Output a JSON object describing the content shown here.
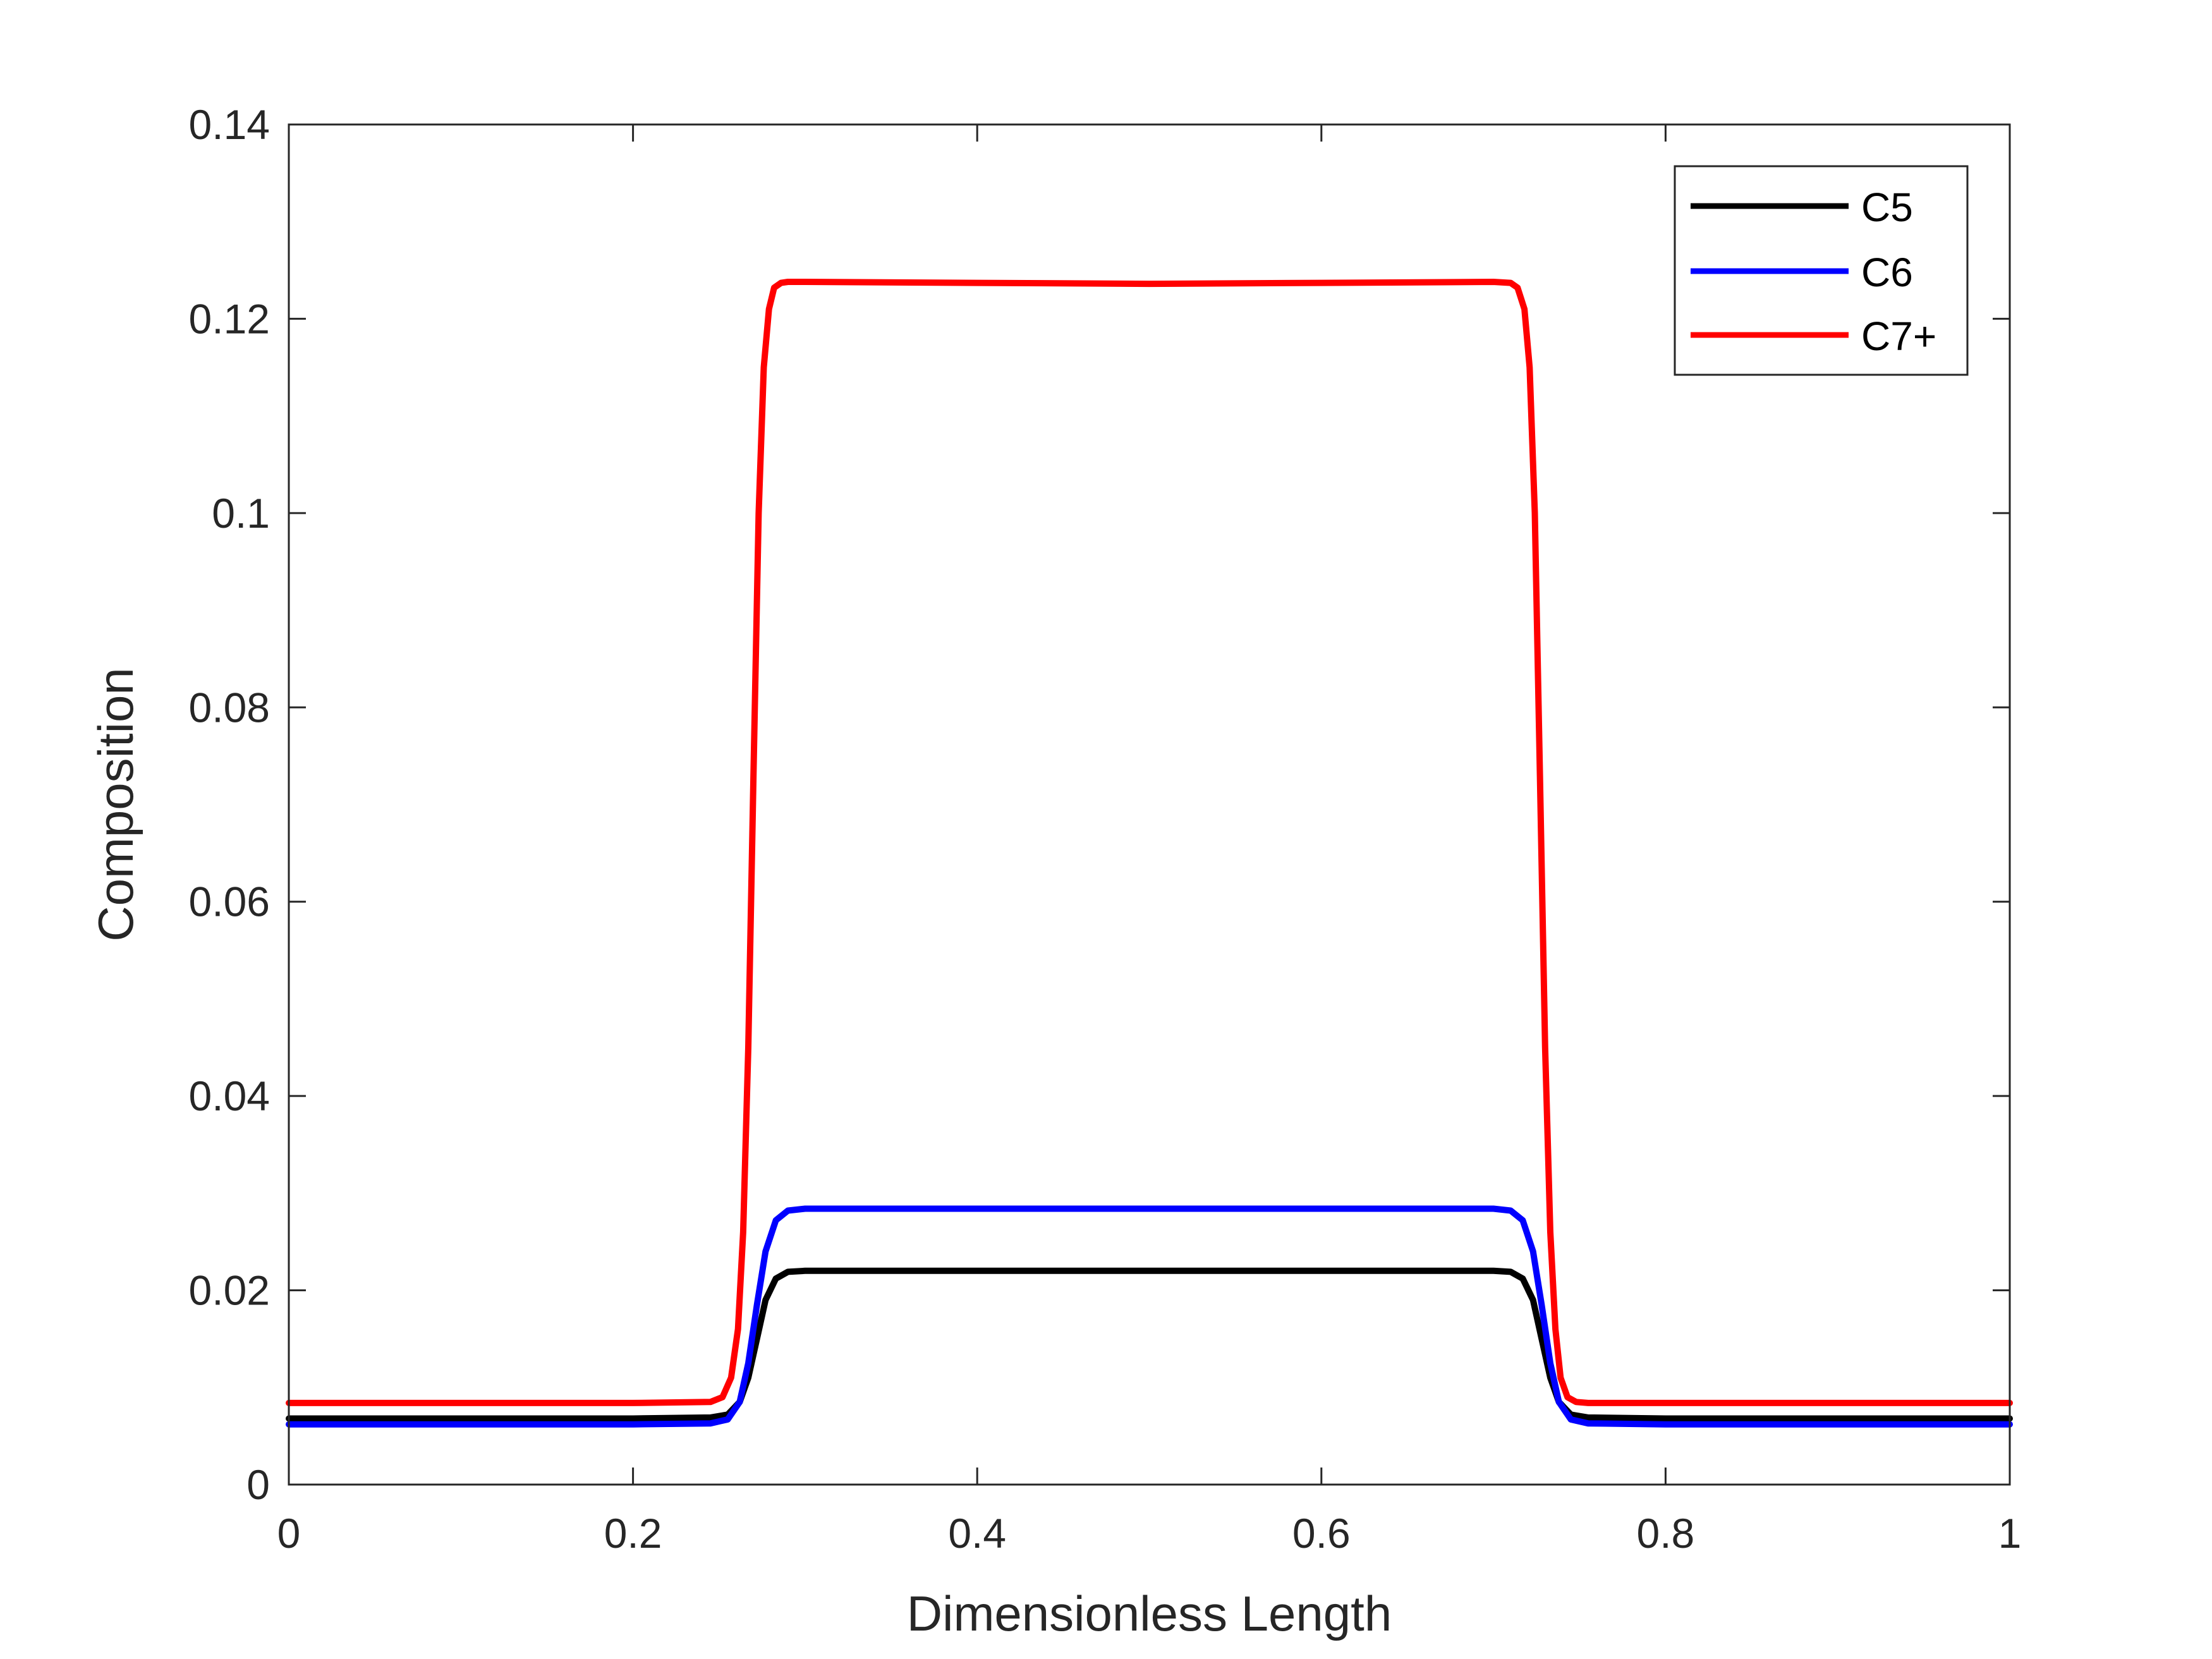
{
  "chart_data": {
    "type": "line",
    "title": "",
    "xlabel": "Dimensionless Length",
    "ylabel": "Composition",
    "xlim": [
      0,
      1
    ],
    "ylim": [
      0,
      0.14
    ],
    "xticks": [
      0,
      0.2,
      0.4,
      0.6,
      0.8,
      1
    ],
    "xtick_labels": [
      "0",
      "0.2",
      "0.4",
      "0.6",
      "0.8",
      "1"
    ],
    "yticks": [
      0,
      0.02,
      0.04,
      0.06,
      0.08,
      0.1,
      0.12,
      0.14
    ],
    "ytick_labels": [
      "0",
      "0.02",
      "0.04",
      "0.06",
      "0.08",
      "0.1",
      "0.12",
      "0.14"
    ],
    "grid": false,
    "legend_position": "top-right",
    "series": [
      {
        "name": "C5",
        "color": "#000000",
        "x": [
          0,
          0.1,
          0.2,
          0.245,
          0.255,
          0.262,
          0.267,
          0.272,
          0.277,
          0.283,
          0.29,
          0.3,
          0.4,
          0.5,
          0.6,
          0.7,
          0.71,
          0.717,
          0.723,
          0.728,
          0.733,
          0.738,
          0.745,
          0.755,
          0.8,
          0.9,
          1
        ],
        "y": [
          0.0068,
          0.0068,
          0.0068,
          0.0069,
          0.0072,
          0.0085,
          0.011,
          0.015,
          0.019,
          0.0212,
          0.0219,
          0.022,
          0.022,
          0.022,
          0.022,
          0.022,
          0.0219,
          0.0212,
          0.019,
          0.015,
          0.011,
          0.0085,
          0.0072,
          0.0069,
          0.0068,
          0.0068,
          0.0068
        ]
      },
      {
        "name": "C6",
        "color": "#0000ff",
        "x": [
          0,
          0.1,
          0.2,
          0.245,
          0.255,
          0.262,
          0.267,
          0.272,
          0.277,
          0.283,
          0.29,
          0.3,
          0.4,
          0.5,
          0.6,
          0.7,
          0.71,
          0.717,
          0.723,
          0.728,
          0.733,
          0.738,
          0.745,
          0.755,
          0.8,
          0.9,
          1
        ],
        "y": [
          0.0062,
          0.0062,
          0.0062,
          0.0063,
          0.0067,
          0.0085,
          0.0125,
          0.0185,
          0.024,
          0.0272,
          0.0282,
          0.0284,
          0.0284,
          0.0284,
          0.0284,
          0.0284,
          0.0282,
          0.0272,
          0.024,
          0.0185,
          0.0125,
          0.0085,
          0.0067,
          0.0063,
          0.0062,
          0.0062,
          0.0062
        ]
      },
      {
        "name": "C7+",
        "color": "#ff0000",
        "x": [
          0,
          0.1,
          0.2,
          0.245,
          0.252,
          0.257,
          0.261,
          0.264,
          0.267,
          0.27,
          0.273,
          0.276,
          0.279,
          0.282,
          0.286,
          0.29,
          0.3,
          0.4,
          0.5,
          0.6,
          0.7,
          0.71,
          0.714,
          0.718,
          0.721,
          0.724,
          0.727,
          0.73,
          0.733,
          0.736,
          0.739,
          0.743,
          0.748,
          0.755,
          0.8,
          0.9,
          1
        ],
        "y": [
          0.0084,
          0.0084,
          0.0084,
          0.0085,
          0.009,
          0.011,
          0.016,
          0.026,
          0.045,
          0.073,
          0.1,
          0.115,
          0.121,
          0.1232,
          0.1237,
          0.1238,
          0.1238,
          0.1237,
          0.1236,
          0.1237,
          0.1238,
          0.1237,
          0.1232,
          0.121,
          0.115,
          0.1,
          0.073,
          0.045,
          0.026,
          0.016,
          0.011,
          0.009,
          0.0085,
          0.0084,
          0.0084,
          0.0084,
          0.0084
        ]
      }
    ]
  }
}
